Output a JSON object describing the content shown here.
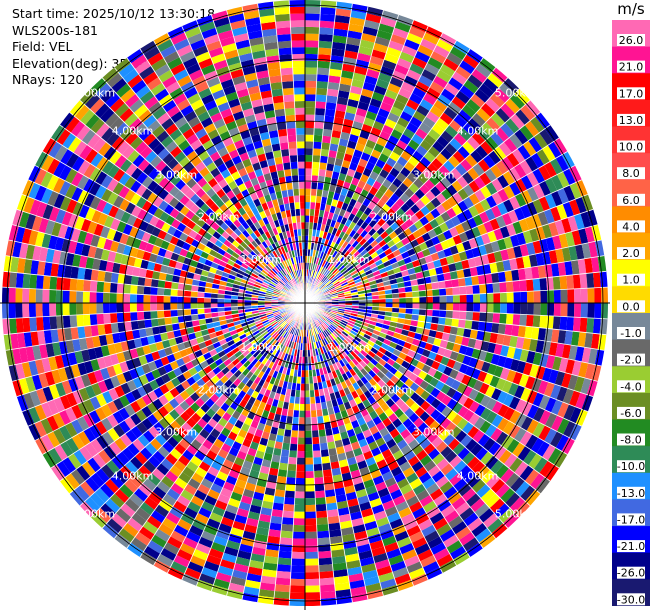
{
  "header": {
    "start_time": "Start time: 2025/10/12 13:30:18",
    "instrument": "WLS200s-181",
    "field": "Field: VEL",
    "elevation": "Elevation(deg): 35.00",
    "nrays": "NRays: 120"
  },
  "chart_data": {
    "type": "ppi",
    "field": "VEL",
    "elevation_deg": 35.0,
    "n_rays": 120,
    "range_ring_labels": [
      "1.00km",
      "2.00km",
      "3.00km",
      "4.00km",
      "5.00km"
    ],
    "range_rings_km": [
      1,
      2,
      3,
      4,
      5
    ],
    "colorbar": {
      "unit": "m/s",
      "ticks": [
        "26.0",
        "21.0",
        "17.0",
        "13.0",
        "10.0",
        "8.0",
        "6.0",
        "4.0",
        "2.0",
        "1.0",
        "0.0",
        "-1.0",
        "-2.0",
        "-4.0",
        "-6.0",
        "-8.0",
        "-10.0",
        "-13.0",
        "-17.0",
        "-21.0",
        "-26.0",
        "-30.0"
      ],
      "bins": [
        {
          "color": "#ff69b4"
        },
        {
          "color": "#ff1493"
        },
        {
          "color": "#ff0000"
        },
        {
          "color": "#ff1a1a"
        },
        {
          "color": "#ff3333"
        },
        {
          "color": "#ff4c4c"
        },
        {
          "color": "#ff6347"
        },
        {
          "color": "#ff8c00"
        },
        {
          "color": "#ffa500"
        },
        {
          "color": "#ffff00"
        },
        {
          "color": "#ffdb00"
        },
        {
          "color": "#778899"
        },
        {
          "color": "#696969"
        },
        {
          "color": "#9acd32"
        },
        {
          "color": "#6b8e23"
        },
        {
          "color": "#228b22"
        },
        {
          "color": "#2e8b57"
        },
        {
          "color": "#1e90ff"
        },
        {
          "color": "#4169e1"
        },
        {
          "color": "#0000ff"
        },
        {
          "color": "#00008b"
        },
        {
          "color": "#191970"
        }
      ]
    },
    "palette": [
      "#ff1493",
      "#ff69b4",
      "#ff0000",
      "#ff6347",
      "#ff8c00",
      "#ffa500",
      "#ffff00",
      "#778899",
      "#696969",
      "#9acd32",
      "#6b8e23",
      "#228b22",
      "#2e8b57",
      "#1e90ff",
      "#4169e1",
      "#0000ff",
      "#00008b",
      "#191970",
      "#ff1493",
      "#0000ff",
      "#ff69b4",
      "#00008b",
      "#ff0000",
      "#0000ff"
    ]
  }
}
